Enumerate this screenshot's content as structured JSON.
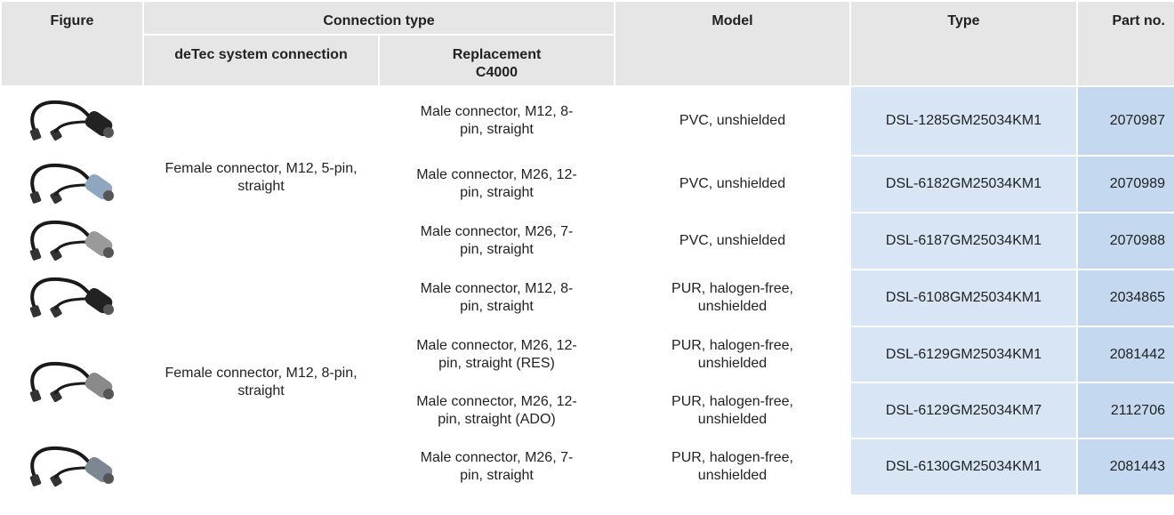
{
  "header": {
    "figure": "Figure",
    "connection_type": "Connection type",
    "model": "Model",
    "type": "Type",
    "part_no": "Part no.",
    "detec": "deTec system connection",
    "replacement": "Replacement C4000"
  },
  "groups": [
    {
      "detec": "Female connector, M12, 5-pin, straight",
      "rows": [
        {
          "replacement": "Male connector, M12, 8-pin, straight",
          "model": "PVC, unshielded",
          "type": "DSL-1285GM25034KM1",
          "part_no": "2070987"
        },
        {
          "replacement": "Male connector, M26, 12-pin, straight",
          "model": "PVC, unshielded",
          "type": "DSL-6182GM25034KM1",
          "part_no": "2070989"
        },
        {
          "replacement": "Male connector, M26, 7-pin, straight",
          "model": "PVC, unshielded",
          "type": "DSL-6187GM25034KM1",
          "part_no": "2070988"
        }
      ]
    },
    {
      "detec": "Female connector, M12, 8-pin, straight",
      "rows": [
        {
          "replacement": "Male connector, M12, 8-pin, straight",
          "model": "PUR, halogen-free, un­shielded",
          "type": "DSL-6108GM25034KM1",
          "part_no": "2034865"
        },
        {
          "replacement": "Male connector, M26, 12-pin, straight (RES)",
          "model": "PUR, halogen-free, un­shielded",
          "type": "DSL-6129GM25034KM1",
          "part_no": "2081442"
        },
        {
          "replacement": "Male connector, M26, 12-pin, straight (ADO)",
          "model": "PUR, halogen-free, un­shielded",
          "type": "DSL-6129GM25034KM7",
          "part_no": "2112706"
        },
        {
          "replacement": "Male connector, M26, 7-pin, straight",
          "model": "PUR, halogen-free, un­shielded",
          "type": "DSL-6130GM25034KM1",
          "part_no": "2081443"
        }
      ]
    }
  ]
}
